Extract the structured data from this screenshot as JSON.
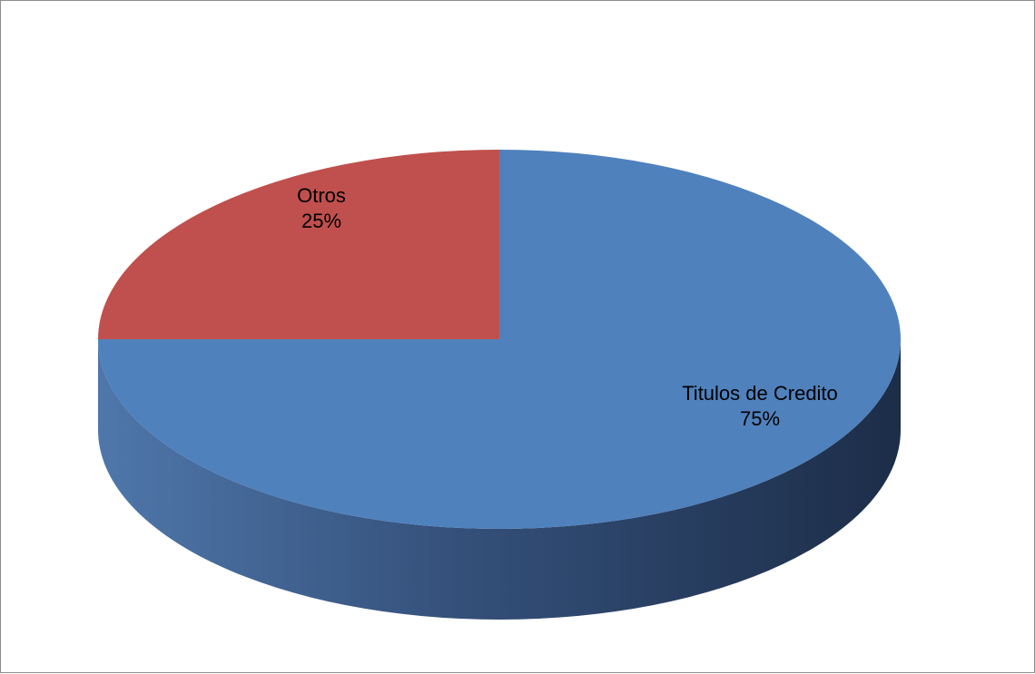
{
  "chart_data": {
    "type": "pie",
    "style": "3d",
    "title": "",
    "slices": [
      {
        "label": "Titulos de Credito",
        "value": 75,
        "value_label": "75%",
        "color": "#4f81bd"
      },
      {
        "label": "Otros",
        "value": 25,
        "value_label": "25%",
        "color": "#c0504d"
      }
    ],
    "legend": "none"
  }
}
